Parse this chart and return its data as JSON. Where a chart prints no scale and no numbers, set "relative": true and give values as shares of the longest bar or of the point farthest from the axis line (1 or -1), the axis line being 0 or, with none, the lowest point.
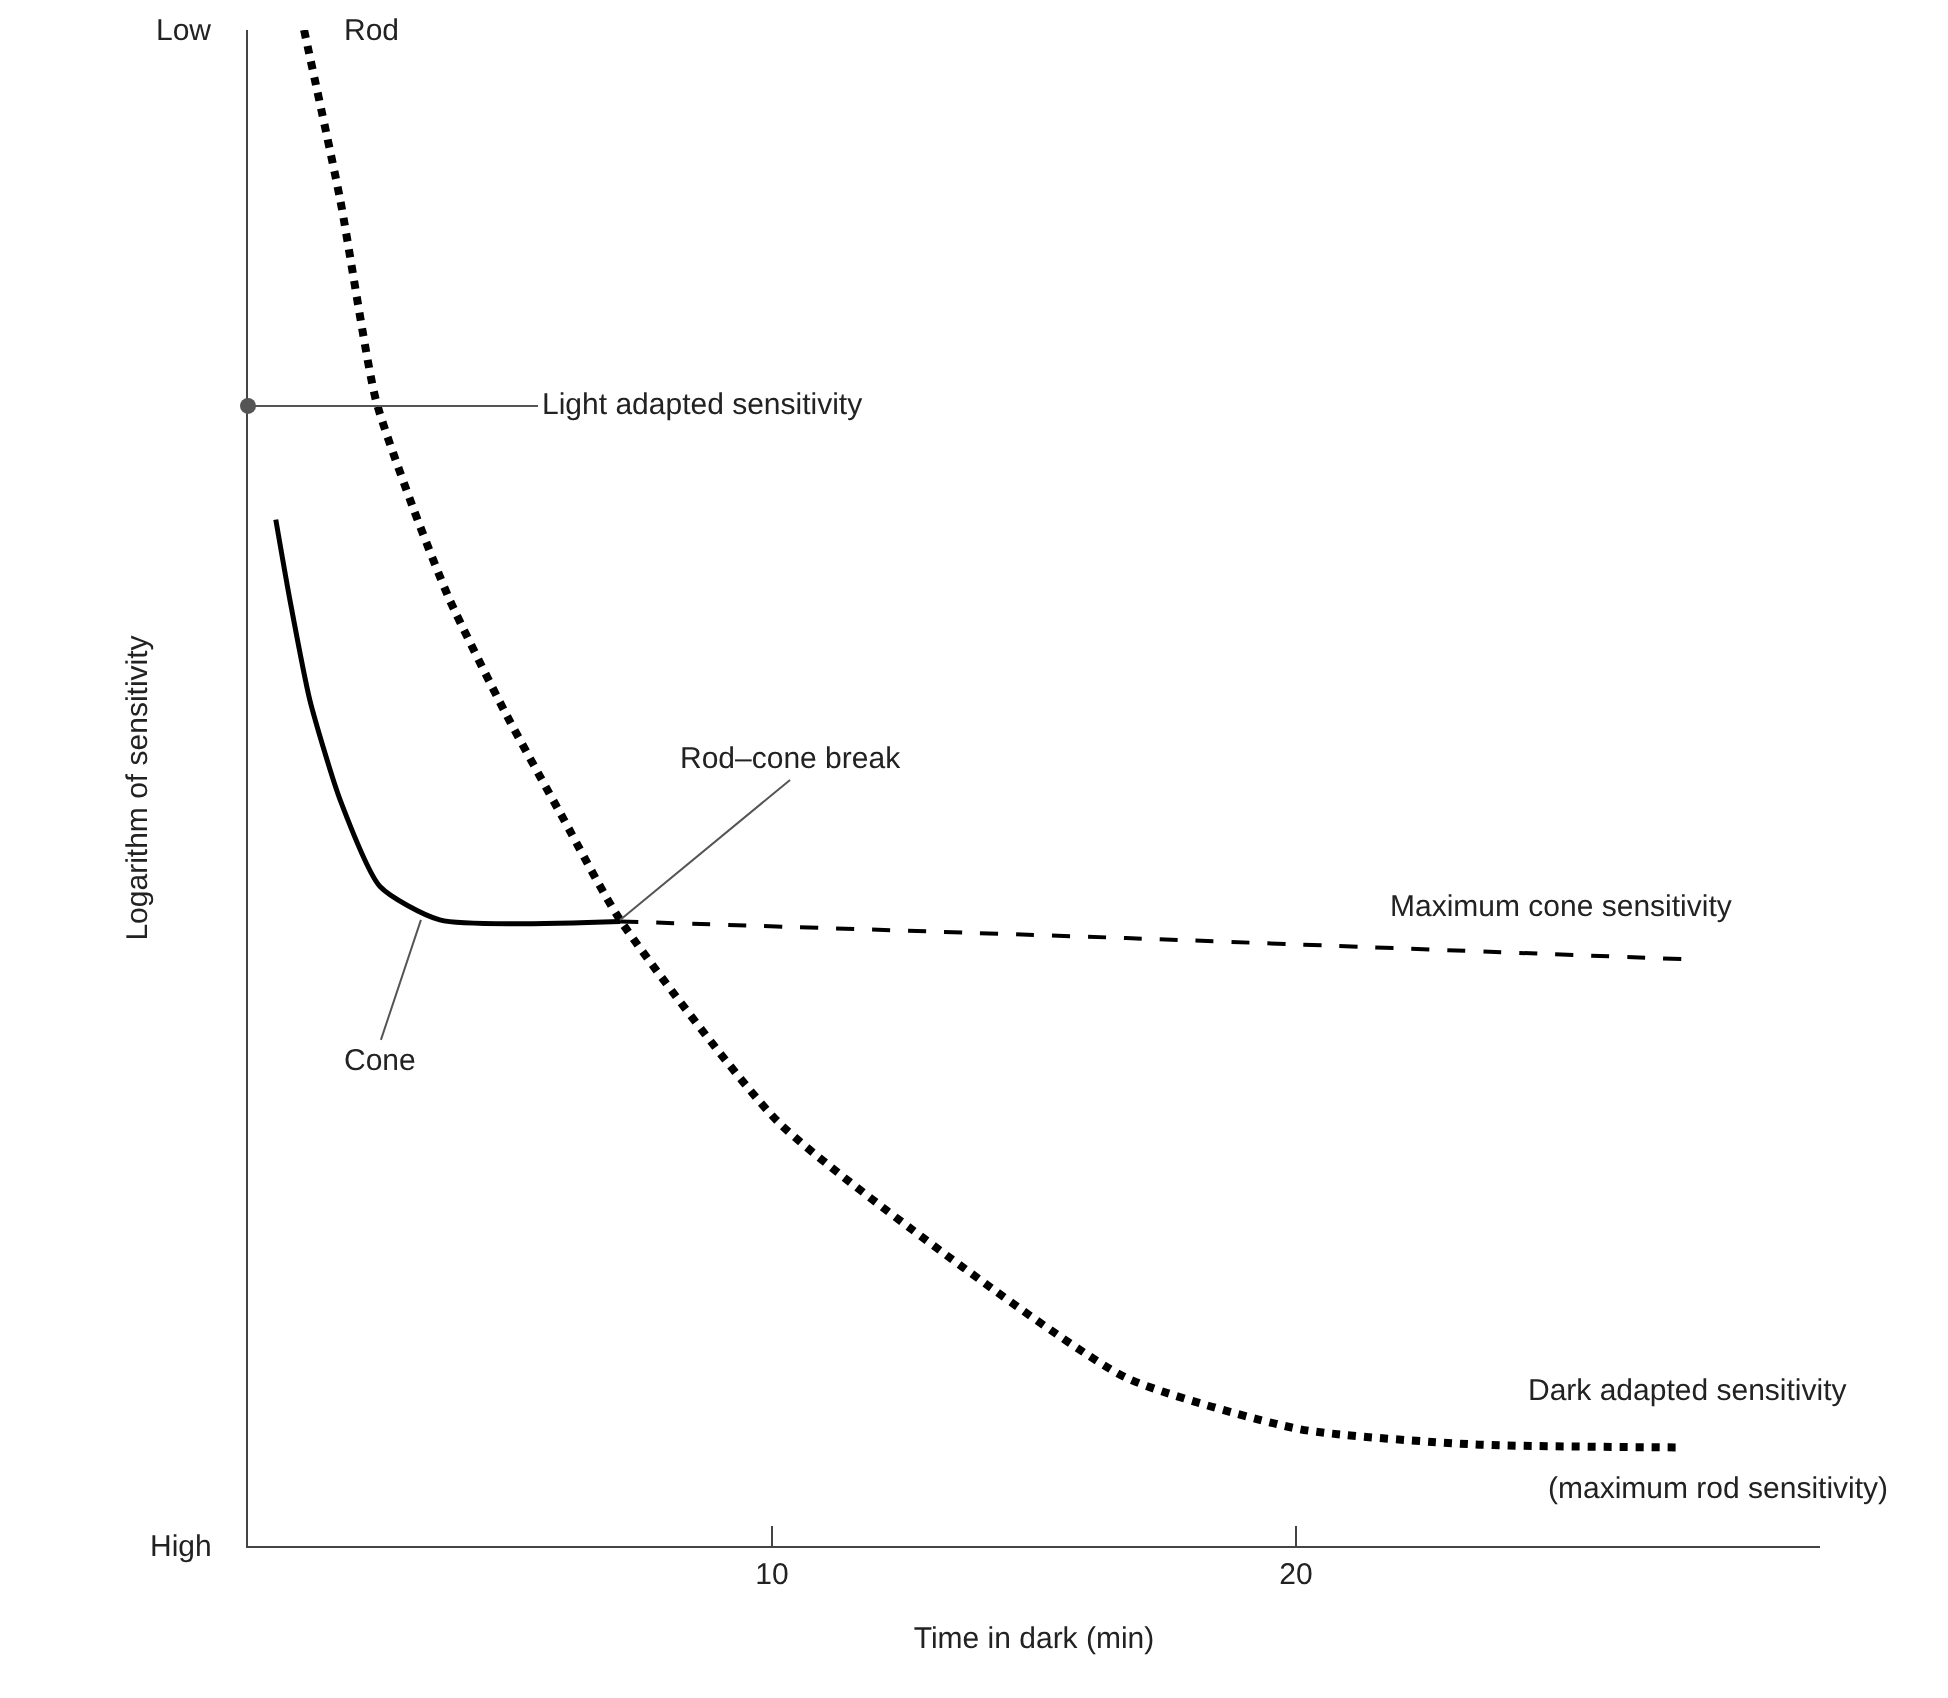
{
  "chart_data": {
    "type": "line",
    "relative": true,
    "xlabel": "Time in dark (min)",
    "ylabel": "Logarithm of sensitivity",
    "xlim": [
      0,
      30
    ],
    "xticks": [
      10,
      20
    ],
    "series": [
      {
        "color": "#000000",
        "line_style": "dotted",
        "x": [
          1.07,
          1.76,
          2.44,
          3.17,
          3.85,
          4.89,
          6.03,
          7.1,
          10.11,
          13.44,
          16.76,
          20.08,
          23.4,
          27.37
        ],
        "values": [
          1,
          0.888,
          0.756,
          0.683,
          0.624,
          0.551,
          0.479,
          0.413,
          0.28,
          0.189,
          0.111,
          0.077,
          0.067,
          0.065
        ]
      },
      {
        "color": "#000000",
        "line_style": "solid",
        "x": [
          0.53,
          0.8,
          1.18,
          1.76,
          2.52,
          3.66,
          7.1
        ],
        "values": [
          0.677,
          0.624,
          0.558,
          0.492,
          0.435,
          0.413,
          0.412
        ]
      },
      {
        "color": "#000000",
        "line_style": "dashed",
        "x": [
          7.1,
          16.76,
          27.44
        ],
        "values": [
          0.412,
          0.401,
          0.387
        ]
      }
    ],
    "annotations": [
      "Low",
      "High",
      {
        "text": "Rod",
        "x": 1.07,
        "y": 1
      },
      {
        "text": "Light adapted sensitivity",
        "x": 0,
        "y": 0.752
      },
      {
        "text": "Rod–cone break",
        "x": 7.1,
        "y": 0.413
      },
      {
        "text": "Cone",
        "x": 3.3,
        "y": 0.413
      },
      {
        "text": "Maximum cone sensitivity",
        "x": 27.44,
        "y": 0.387
      },
      {
        "text": "Dark adapted sensitivity",
        "x": 27.37,
        "y": 0.065
      },
      {
        "text": "(maximum rod sensitivity)",
        "x": 27.37,
        "y": 0.065
      }
    ]
  }
}
